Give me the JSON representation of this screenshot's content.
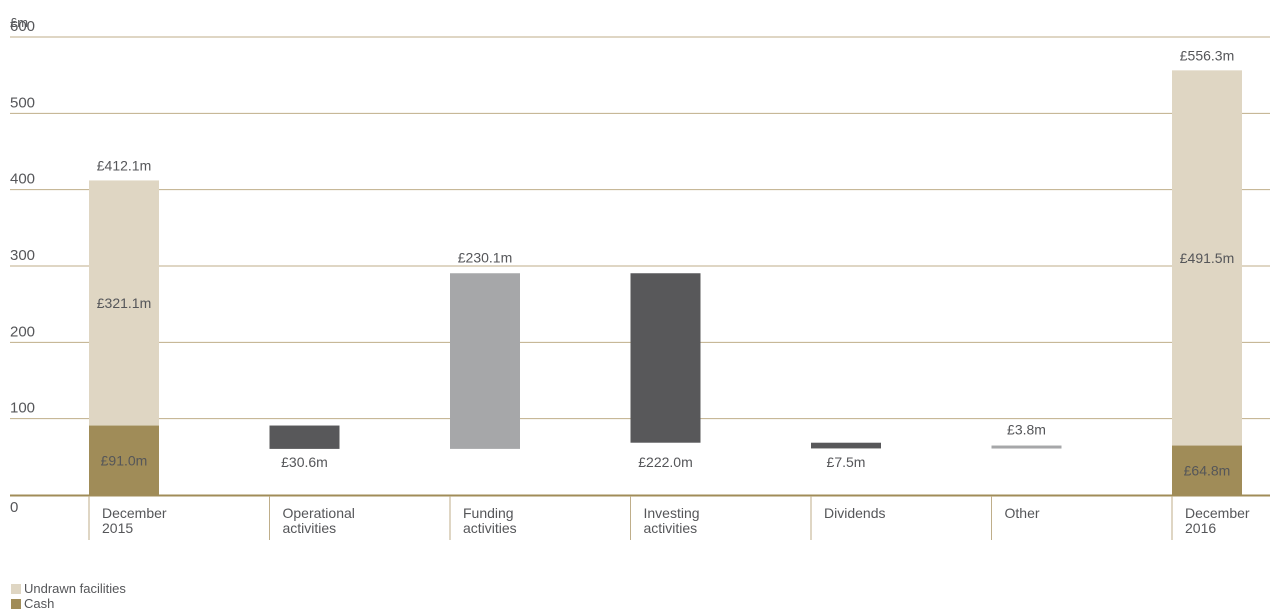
{
  "chart_data": {
    "type": "waterfall",
    "yunit": "£m",
    "ylim": [
      0,
      600
    ],
    "yticks": [
      0,
      100,
      200,
      300,
      400,
      500,
      600
    ],
    "grid": true,
    "categories": [
      [
        "December",
        "2015"
      ],
      [
        "Operational",
        "activities"
      ],
      [
        "Funding",
        "activities"
      ],
      [
        "Investing",
        "activities"
      ],
      [
        "Dividends"
      ],
      [
        "Other"
      ],
      [
        "December",
        "2016"
      ]
    ],
    "series": [
      {
        "name": "Undrawn facilities",
        "color": "#dfd6c3"
      },
      {
        "name": "Cash",
        "color": "#a08c58"
      }
    ],
    "bars": [
      {
        "kind": "stack",
        "cash": 91.0,
        "undrawn": 321.1,
        "total": 412.1,
        "labels": {
          "cash": "£91.0m",
          "undrawn": "£321.1m",
          "total": "£412.1m"
        }
      },
      {
        "kind": "float",
        "from": 60.4,
        "to": 91.0,
        "color": "#58585a",
        "label": "£30.6m",
        "label_pos": "below"
      },
      {
        "kind": "float",
        "from": 60.4,
        "to": 290.5,
        "color": "#a6a7a9",
        "label": "£230.1m",
        "label_pos": "above"
      },
      {
        "kind": "float",
        "from": 68.5,
        "to": 290.5,
        "color": "#58585a",
        "label": "£222.0m",
        "label_pos": "below"
      },
      {
        "kind": "float",
        "from": 61.0,
        "to": 68.5,
        "color": "#58585a",
        "label": "£7.5m",
        "label_pos": "below"
      },
      {
        "kind": "float",
        "from": 61.0,
        "to": 64.8,
        "color": "#a6a7a9",
        "label": "£3.8m",
        "label_pos": "above"
      },
      {
        "kind": "stack",
        "cash": 64.8,
        "undrawn": 491.5,
        "total": 556.3,
        "labels": {
          "cash": "£64.8m",
          "undrawn": "£491.5m",
          "total": "£556.3m"
        }
      }
    ]
  }
}
